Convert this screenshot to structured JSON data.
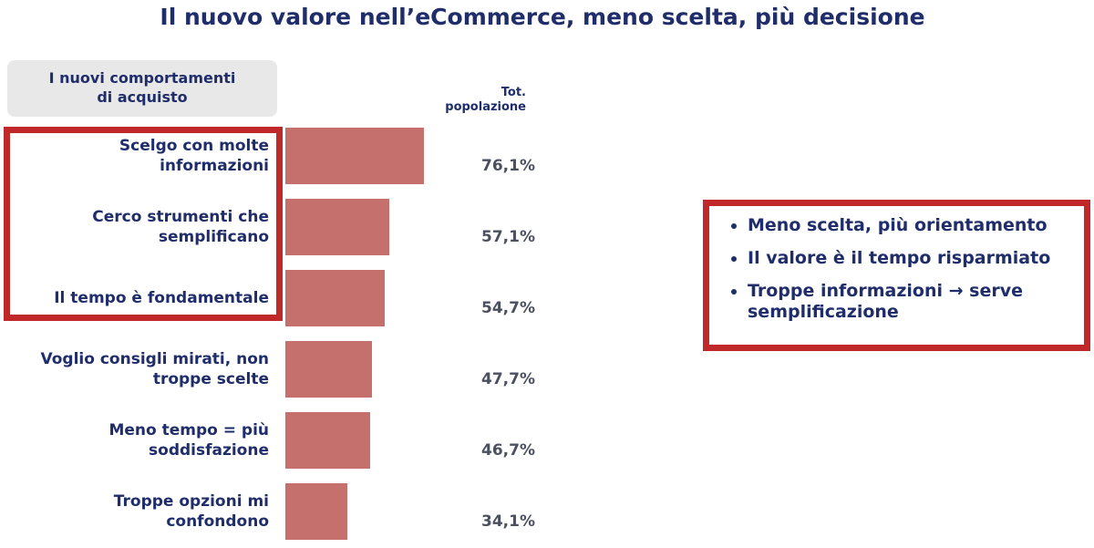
{
  "chart_data": {
    "type": "bar",
    "title": "Il nuovo valore nell’eCommerce, meno scelta, più decisione",
    "category_header": "I nuovi comportamenti\ndi acquisto",
    "series_header": "Tot.\npopolazione",
    "categories": [
      "Scelgo con molte\ninformazioni",
      "Cerco strumenti che\nsemplificano",
      "Il tempo è fondamentale",
      "Voglio consigli mirati, non\ntroppe scelte",
      "Meno tempo = più\nsoddisfazione",
      "Troppe opzioni mi\nconfondono"
    ],
    "values": [
      76.1,
      57.1,
      54.7,
      47.7,
      46.7,
      34.1
    ],
    "value_labels": [
      "76,1%",
      "57,1%",
      "54,7%",
      "47,7%",
      "46,7%",
      "34,1%"
    ],
    "color": "#c5706c",
    "bullets": [
      "Meno scelta, più orientamento",
      "Il valore è il tempo risparmiato",
      "Troppe informazioni → serve\nsemplificazione"
    ]
  }
}
